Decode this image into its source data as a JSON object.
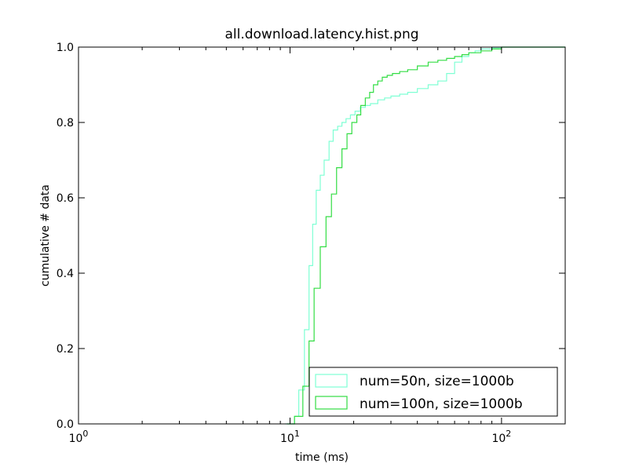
{
  "chart_data": {
    "type": "line",
    "title": "all.download.latency.hist.png",
    "xlabel": "time (ms)",
    "ylabel": "cumulative # data",
    "xscale": "log",
    "xlim": [
      1,
      200
    ],
    "ylim": [
      0,
      1.0
    ],
    "xticks": [
      {
        "value": 1,
        "base": "10",
        "exp": "0"
      },
      {
        "value": 10,
        "base": "10",
        "exp": "1"
      },
      {
        "value": 100,
        "base": "10",
        "exp": "2"
      }
    ],
    "yticks": [
      {
        "value": 0.0,
        "label": "0.0"
      },
      {
        "value": 0.2,
        "label": "0.2"
      },
      {
        "value": 0.4,
        "label": "0.4"
      },
      {
        "value": 0.6,
        "label": "0.6"
      },
      {
        "value": 0.8,
        "label": "0.8"
      },
      {
        "value": 1.0,
        "label": "1.0"
      }
    ],
    "grid": false,
    "legend_position": "bottom-right",
    "series": [
      {
        "name": "num=50n, size=1000b",
        "color": "#7fffd4",
        "x": [
          9.5,
          10.5,
          11.0,
          11.7,
          12.3,
          12.8,
          13.3,
          13.9,
          14.5,
          15.3,
          16.0,
          16.8,
          17.6,
          18.4,
          19.3,
          20.3,
          21.5,
          22.7,
          24.0,
          26.0,
          28.0,
          30.0,
          33.0,
          36.0,
          40.0,
          45.0,
          50.0,
          55.0,
          60.0,
          65.0,
          70.0,
          75.0,
          80.0,
          90.0,
          100.0,
          200.0
        ],
        "y": [
          0.0,
          0.02,
          0.09,
          0.25,
          0.42,
          0.53,
          0.62,
          0.66,
          0.7,
          0.75,
          0.78,
          0.79,
          0.8,
          0.81,
          0.82,
          0.83,
          0.84,
          0.845,
          0.85,
          0.86,
          0.865,
          0.87,
          0.875,
          0.88,
          0.89,
          0.9,
          0.91,
          0.93,
          0.96,
          0.975,
          0.985,
          0.99,
          0.995,
          0.998,
          1.0,
          1.0
        ]
      },
      {
        "name": "num=100n, size=1000b",
        "color": "#33dd44",
        "x": [
          9.7,
          10.5,
          11.5,
          12.3,
          13.0,
          13.9,
          14.8,
          15.7,
          16.6,
          17.6,
          18.6,
          19.6,
          20.7,
          21.6,
          22.7,
          23.8,
          24.8,
          26.0,
          27.3,
          28.8,
          30.5,
          33.0,
          36.0,
          40.0,
          45.0,
          50.0,
          55.0,
          60.0,
          65.0,
          70.0,
          80.0,
          90.0,
          100.0,
          200.0
        ],
        "y": [
          0.0,
          0.02,
          0.1,
          0.22,
          0.36,
          0.47,
          0.55,
          0.61,
          0.68,
          0.73,
          0.77,
          0.8,
          0.82,
          0.845,
          0.865,
          0.88,
          0.9,
          0.91,
          0.92,
          0.925,
          0.93,
          0.935,
          0.94,
          0.95,
          0.96,
          0.965,
          0.97,
          0.975,
          0.98,
          0.985,
          0.99,
          0.995,
          1.0,
          1.0
        ]
      }
    ]
  }
}
